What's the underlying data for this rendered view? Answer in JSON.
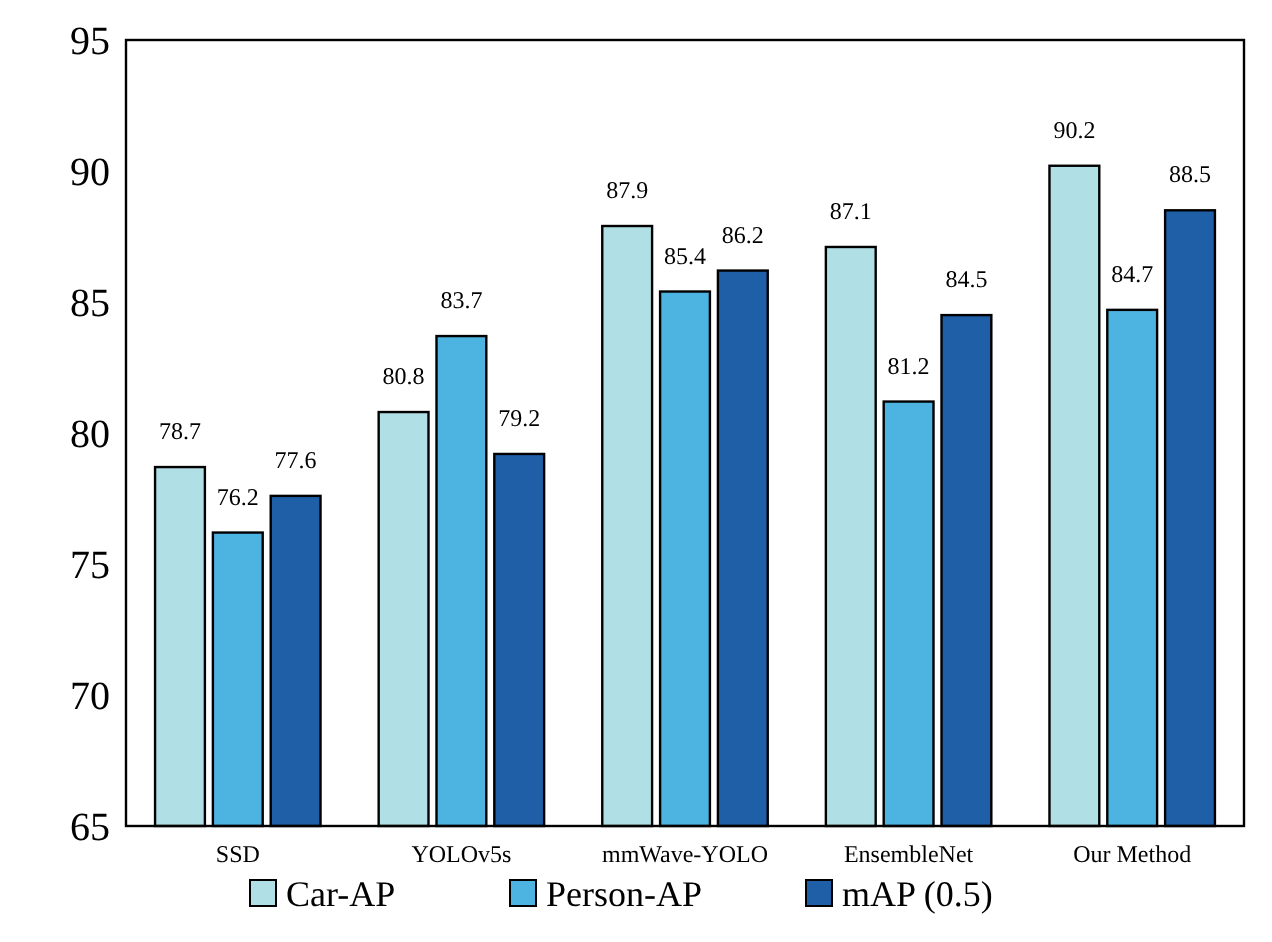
{
  "chart_data": {
    "type": "bar",
    "categories": [
      "SSD",
      "YOLOv5s",
      "mmWave-YOLO",
      "EnsembleNet",
      "Our Method"
    ],
    "series": [
      {
        "name": "Car-AP",
        "color": "#b0e0e6",
        "values": [
          78.7,
          80.8,
          87.9,
          87.1,
          90.2
        ]
      },
      {
        "name": "Person-AP",
        "color": "#4db3e0",
        "values": [
          76.2,
          83.7,
          85.4,
          81.2,
          84.7
        ]
      },
      {
        "name": "mAP (0.5)",
        "color": "#1f5fa8",
        "values": [
          77.6,
          79.2,
          86.2,
          84.5,
          88.5
        ]
      }
    ],
    "ylim": [
      65,
      95
    ],
    "yticks": [
      65,
      70,
      75,
      80,
      85,
      90,
      95
    ],
    "data_labels": true,
    "grid": false,
    "legend": "bottom"
  }
}
